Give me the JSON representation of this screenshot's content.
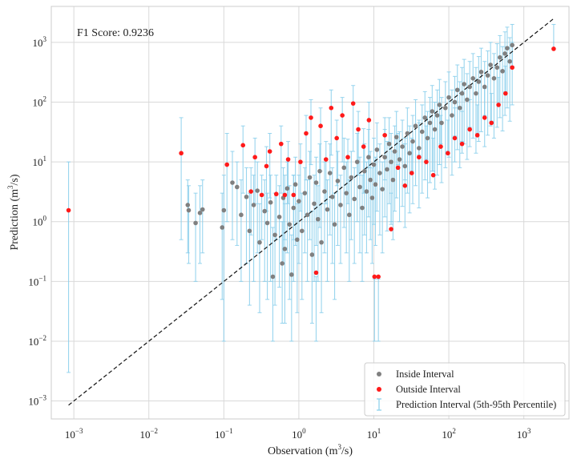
{
  "chart_data": {
    "type": "scatter",
    "annotation": "F1 Score: 0.9236",
    "xlabel": {
      "main": "Observation (m",
      "sup": "3",
      "tail": "/s)"
    },
    "ylabel": {
      "main": "Prediction (m",
      "sup": "3",
      "tail": "/s)"
    },
    "x_scale": "log",
    "y_scale": "log",
    "xlim": [
      0.0005,
      4000
    ],
    "ylim": [
      0.0005,
      4000
    ],
    "x_ticks": [
      {
        "value": 0.001,
        "base": "10",
        "exp": "−3"
      },
      {
        "value": 0.01,
        "base": "10",
        "exp": "−2"
      },
      {
        "value": 0.1,
        "base": "10",
        "exp": "−1"
      },
      {
        "value": 1,
        "base": "10",
        "exp": "0"
      },
      {
        "value": 10,
        "base": "10",
        "exp": "1"
      },
      {
        "value": 100,
        "base": "10",
        "exp": "2"
      },
      {
        "value": 1000,
        "base": "10",
        "exp": "3"
      }
    ],
    "y_ticks": [
      {
        "value": 0.001,
        "base": "10",
        "exp": "−3"
      },
      {
        "value": 0.01,
        "base": "10",
        "exp": "−2"
      },
      {
        "value": 0.1,
        "base": "10",
        "exp": "−1"
      },
      {
        "value": 1,
        "base": "10",
        "exp": "0"
      },
      {
        "value": 10,
        "base": "10",
        "exp": "1"
      },
      {
        "value": 100,
        "base": "10",
        "exp": "2"
      },
      {
        "value": 1000,
        "base": "10",
        "exp": "3"
      }
    ],
    "grid": true,
    "legend_position": "bottom-right",
    "reference_line": {
      "x": [
        0.00085,
        2500
      ],
      "y": [
        0.00085,
        2500
      ],
      "style": "dashed",
      "color": "#111111"
    },
    "colors": {
      "inside": "#808080",
      "outside": "#ff1a1a",
      "interval": "#87ceeb"
    },
    "series": [
      {
        "name": "Inside Interval",
        "role": "inside",
        "points": [
          [
            0.033,
            1.9,
            0.3,
            5
          ],
          [
            0.034,
            1.55,
            0.2,
            4
          ],
          [
            0.042,
            0.95,
            0.1,
            3
          ],
          [
            0.048,
            1.4,
            0.2,
            4
          ],
          [
            0.052,
            1.6,
            0.3,
            5
          ],
          [
            0.095,
            0.8,
            0.05,
            3
          ],
          [
            0.1,
            1.55,
            0.01,
            6
          ],
          [
            0.13,
            4.5,
            0.5,
            15
          ],
          [
            0.15,
            3.8,
            0.4,
            10
          ],
          [
            0.17,
            1.3,
            0.1,
            5
          ],
          [
            0.2,
            2.6,
            0.2,
            8
          ],
          [
            0.22,
            0.7,
            0.04,
            3
          ],
          [
            0.25,
            1.9,
            0.1,
            6
          ],
          [
            0.28,
            3.3,
            0.3,
            10
          ],
          [
            0.3,
            0.45,
            0.03,
            2
          ],
          [
            0.35,
            1.5,
            0.1,
            5
          ],
          [
            0.38,
            0.95,
            0.05,
            3
          ],
          [
            0.42,
            2.1,
            0.1,
            6
          ],
          [
            0.45,
            0.12,
            0.01,
            0.8
          ],
          [
            0.48,
            0.6,
            0.04,
            3
          ],
          [
            0.55,
            1.2,
            0.08,
            4
          ],
          [
            0.6,
            0.2,
            0.02,
            1
          ],
          [
            0.62,
            2.5,
            0.2,
            8
          ],
          [
            0.65,
            0.35,
            0.02,
            2
          ],
          [
            0.7,
            3.6,
            0.3,
            10
          ],
          [
            0.75,
            0.9,
            0.05,
            4
          ],
          [
            0.8,
            0.13,
            0.01,
            0.6
          ],
          [
            0.85,
            1.7,
            0.1,
            6
          ],
          [
            0.9,
            4.2,
            0.4,
            12
          ],
          [
            0.95,
            0.5,
            0.03,
            2
          ],
          [
            1.0,
            2.2,
            0.2,
            6
          ],
          [
            1.1,
            0.7,
            0.05,
            3
          ],
          [
            1.2,
            3.0,
            0.3,
            8
          ],
          [
            1.3,
            1.3,
            0.1,
            5
          ],
          [
            1.4,
            5.5,
            0.5,
            15
          ],
          [
            1.5,
            0.28,
            0.02,
            1.5
          ],
          [
            1.6,
            2.0,
            0.1,
            6
          ],
          [
            1.7,
            4.5,
            0.4,
            12
          ],
          [
            1.8,
            1.1,
            0.1,
            4
          ],
          [
            1.9,
            7.0,
            0.8,
            20
          ],
          [
            2.0,
            0.45,
            0.03,
            2
          ],
          [
            2.2,
            3.2,
            0.3,
            10
          ],
          [
            2.4,
            1.6,
            0.1,
            5
          ],
          [
            2.6,
            6.5,
            0.6,
            20
          ],
          [
            2.8,
            2.6,
            0.2,
            8
          ],
          [
            3.0,
            0.9,
            0.05,
            3
          ],
          [
            3.3,
            4.8,
            0.4,
            15
          ],
          [
            3.6,
            1.9,
            0.2,
            6
          ],
          [
            4.0,
            8.0,
            0.8,
            25
          ],
          [
            4.3,
            3.0,
            0.3,
            10
          ],
          [
            4.7,
            1.3,
            0.1,
            5
          ],
          [
            5.0,
            5.5,
            0.5,
            15
          ],
          [
            5.5,
            2.4,
            0.2,
            8
          ],
          [
            6.0,
            10,
            1,
            30
          ],
          [
            6.5,
            3.8,
            0.3,
            12
          ],
          [
            7.0,
            1.7,
            0.1,
            6
          ],
          [
            7.5,
            7.0,
            0.6,
            20
          ],
          [
            8.0,
            3.2,
            0.3,
            10
          ],
          [
            8.5,
            12,
            1.2,
            35
          ],
          [
            9.0,
            5.0,
            0.5,
            15
          ],
          [
            9.5,
            2.5,
            0.2,
            8
          ],
          [
            10,
            9.0,
            0.9,
            25
          ],
          [
            10.5,
            4.2,
            0.4,
            12
          ],
          [
            11,
            16,
            1.5,
            45
          ],
          [
            12,
            6.5,
            0.6,
            20
          ],
          [
            13,
            3.5,
            0.3,
            10
          ],
          [
            14,
            12,
            1.2,
            35
          ],
          [
            15,
            7.5,
            0.7,
            22
          ],
          [
            16,
            20,
            2,
            55
          ],
          [
            17,
            10,
            1,
            30
          ],
          [
            18,
            5.0,
            0.5,
            15
          ],
          [
            19,
            15,
            1.5,
            40
          ],
          [
            20,
            26,
            2.5,
            70
          ],
          [
            22,
            11,
            1,
            32
          ],
          [
            24,
            18,
            1.8,
            50
          ],
          [
            26,
            8.5,
            0.8,
            25
          ],
          [
            28,
            30,
            3,
            80
          ],
          [
            30,
            14,
            1.4,
            40
          ],
          [
            33,
            22,
            2,
            60
          ],
          [
            36,
            40,
            4,
            110
          ],
          [
            40,
            17,
            1.7,
            50
          ],
          [
            44,
            32,
            3,
            90
          ],
          [
            48,
            55,
            5,
            150
          ],
          [
            52,
            25,
            2.5,
            70
          ],
          [
            56,
            45,
            4.5,
            120
          ],
          [
            60,
            70,
            7,
            190
          ],
          [
            65,
            35,
            3.5,
            100
          ],
          [
            70,
            60,
            6,
            160
          ],
          [
            75,
            90,
            9,
            240
          ],
          [
            80,
            45,
            4.5,
            120
          ],
          [
            90,
            80,
            8,
            220
          ],
          [
            100,
            120,
            12,
            320
          ],
          [
            110,
            60,
            6,
            160
          ],
          [
            120,
            100,
            10,
            270
          ],
          [
            130,
            160,
            16,
            420
          ],
          [
            140,
            80,
            8,
            220
          ],
          [
            150,
            140,
            14,
            380
          ],
          [
            160,
            200,
            20,
            520
          ],
          [
            175,
            110,
            11,
            300
          ],
          [
            190,
            180,
            18,
            480
          ],
          [
            210,
            250,
            25,
            650
          ],
          [
            230,
            140,
            14,
            380
          ],
          [
            250,
            220,
            22,
            580
          ],
          [
            270,
            320,
            32,
            800
          ],
          [
            300,
            180,
            18,
            480
          ],
          [
            330,
            280,
            28,
            720
          ],
          [
            360,
            420,
            40,
            1000
          ],
          [
            400,
            250,
            25,
            650
          ],
          [
            440,
            380,
            38,
            950
          ],
          [
            480,
            560,
            55,
            1300
          ],
          [
            520,
            330,
            33,
            850
          ],
          [
            560,
            650,
            60,
            1500
          ],
          [
            600,
            800,
            80,
            1800
          ],
          [
            650,
            480,
            48,
            1200
          ],
          [
            700,
            900,
            90,
            2000
          ]
        ]
      },
      {
        "name": "Outside Interval",
        "role": "outside",
        "points": [
          [
            0.00085,
            1.55,
            0.003,
            10
          ],
          [
            0.027,
            14,
            0.5,
            55
          ],
          [
            0.11,
            9.0,
            1,
            30
          ],
          [
            0.18,
            19,
            3,
            40
          ],
          [
            0.23,
            3.2,
            0.6,
            8
          ],
          [
            0.26,
            12,
            2,
            25
          ],
          [
            0.32,
            2.8,
            0.5,
            6
          ],
          [
            0.37,
            8.5,
            1.5,
            18
          ],
          [
            0.41,
            15,
            2.5,
            30
          ],
          [
            0.5,
            2.9,
            0.5,
            6
          ],
          [
            0.58,
            20,
            3,
            40
          ],
          [
            0.65,
            2.8,
            0.5,
            6
          ],
          [
            0.72,
            11,
            2,
            22
          ],
          [
            0.85,
            2.8,
            0.5,
            6
          ],
          [
            1.05,
            10,
            1.5,
            20
          ],
          [
            1.25,
            30,
            5,
            60
          ],
          [
            1.45,
            55,
            9,
            110
          ],
          [
            1.7,
            0.14,
            0.01,
            0.12
          ],
          [
            1.95,
            40,
            7,
            80
          ],
          [
            2.3,
            11,
            2,
            22
          ],
          [
            2.7,
            80,
            13,
            160
          ],
          [
            3.2,
            25,
            4,
            50
          ],
          [
            3.8,
            60,
            10,
            120
          ],
          [
            4.5,
            12,
            2,
            24
          ],
          [
            5.3,
            95,
            15,
            190
          ],
          [
            6.2,
            35,
            6,
            70
          ],
          [
            7.3,
            18,
            3,
            36
          ],
          [
            8.6,
            50,
            8,
            100
          ],
          [
            10.2,
            0.12,
            0.01,
            0.11
          ],
          [
            11.5,
            0.12,
            0.01,
            0.11
          ],
          [
            14,
            28,
            5,
            55
          ],
          [
            17,
            0.75,
            0.9,
            3
          ],
          [
            21,
            8.0,
            9,
            30
          ],
          [
            26,
            4.0,
            5,
            20
          ],
          [
            32,
            6.5,
            7,
            25
          ],
          [
            40,
            12,
            13,
            45
          ],
          [
            50,
            10,
            11,
            40
          ],
          [
            62,
            6.0,
            7,
            25
          ],
          [
            78,
            18,
            20,
            60
          ],
          [
            97,
            14,
            15,
            50
          ],
          [
            120,
            25,
            27,
            80
          ],
          [
            150,
            20,
            22,
            70
          ],
          [
            190,
            35,
            38,
            110
          ],
          [
            240,
            28,
            30,
            90
          ],
          [
            300,
            55,
            60,
            170
          ],
          [
            370,
            45,
            48,
            140
          ],
          [
            460,
            90,
            95,
            260
          ],
          [
            570,
            140,
            150,
            400
          ],
          [
            700,
            380,
            400,
            1000
          ],
          [
            2500,
            780,
            800,
            2000
          ]
        ]
      },
      {
        "name": "Prediction Interval (5th-95th Percentile)",
        "role": "interval"
      }
    ]
  }
}
